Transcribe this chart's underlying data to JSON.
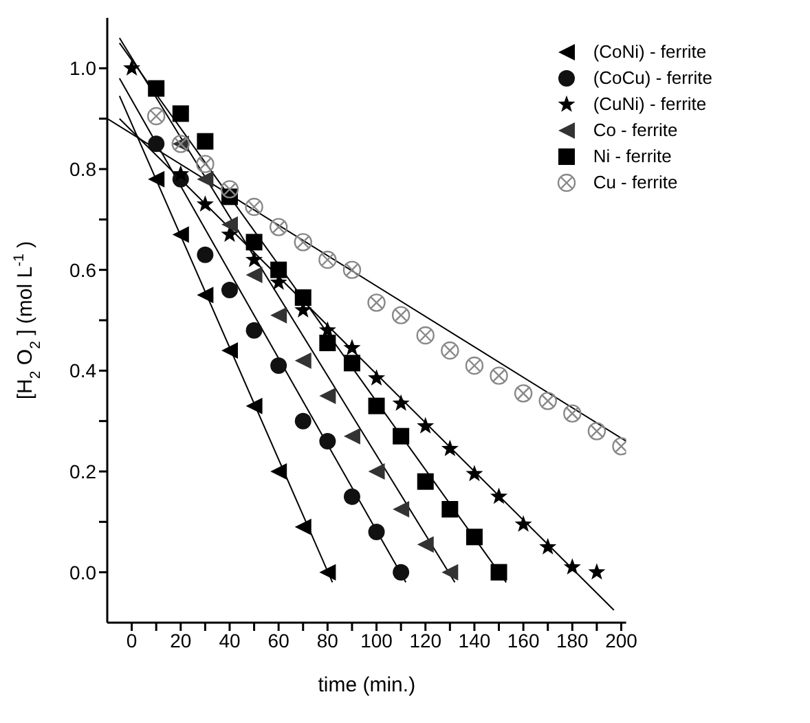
{
  "chart_data": {
    "type": "scatter",
    "xlabel": "time (min.)",
    "ylabel": "[H$_{2}$O$_{2}$] (mol L$^{-1}$)",
    "xlim": [
      -10,
      202
    ],
    "ylim": [
      -0.1,
      1.1
    ],
    "xticks": [
      0,
      {
        "value": 10,
        "label": null
      },
      20,
      {
        "value": 30,
        "label": null
      },
      40,
      {
        "value": 50,
        "label": null
      },
      60,
      {
        "value": 70,
        "label": null
      },
      80,
      {
        "value": 90,
        "label": null
      },
      100,
      {
        "value": 110,
        "label": null
      },
      120,
      {
        "value": 130,
        "label": null
      },
      140,
      {
        "value": 150,
        "label": null
      },
      160,
      {
        "value": 170,
        "label": null
      },
      180,
      {
        "value": 190,
        "label": null
      },
      200
    ],
    "yticks": [
      {
        "value": 0,
        "label": "0.0"
      },
      {
        "value": 0.1,
        "label": null
      },
      {
        "value": 0.2,
        "label": "0.2"
      },
      {
        "value": 0.3,
        "label": null
      },
      {
        "value": 0.4,
        "label": "0.4"
      },
      {
        "value": 0.5,
        "label": null
      },
      {
        "value": 0.6,
        "label": "0.6"
      },
      {
        "value": 0.7,
        "label": null
      },
      {
        "value": 0.8,
        "label": "0.8"
      },
      {
        "value": 0.9,
        "label": null
      },
      {
        "value": 1.0,
        "label": "1.0"
      }
    ],
    "grid": false,
    "legend": "top right",
    "series": [
      {
        "name": "(CoNi) - ferrite",
        "color": "#000000",
        "marker": "triangle",
        "x": [
          10,
          20,
          30,
          40,
          50,
          60,
          70,
          80
        ],
        "values": [
          0.78,
          0.67,
          0.55,
          0.44,
          0.33,
          0.2,
          0.09,
          0.0
        ]
      },
      {
        "name": "(CoCu) - ferrite",
        "color": "#111111",
        "marker": "circle",
        "x": [
          10,
          20,
          30,
          40,
          50,
          60,
          70,
          80,
          90,
          100,
          110
        ],
        "values": [
          0.85,
          0.78,
          0.63,
          0.56,
          0.48,
          0.41,
          0.3,
          0.26,
          0.15,
          0.08,
          0.0
        ]
      },
      {
        "name": "(CuNi) - ferrite",
        "color": "#000000",
        "marker": "star",
        "x": [
          0,
          20,
          30,
          40,
          50,
          60,
          70,
          80,
          90,
          100,
          110,
          120,
          130,
          140,
          150,
          160,
          170,
          180,
          190
        ],
        "values": [
          1.0,
          0.79,
          0.73,
          0.67,
          0.62,
          0.575,
          0.52,
          0.48,
          0.445,
          0.385,
          0.335,
          0.29,
          0.245,
          0.195,
          0.15,
          0.095,
          0.05,
          0.01,
          0.0
        ]
      },
      {
        "name": "Co - ferrite",
        "color": "#333333",
        "marker": "triangle",
        "x": [
          20,
          30,
          40,
          50,
          60,
          70,
          80,
          90,
          100,
          110,
          120,
          130
        ],
        "values": [
          0.85,
          0.78,
          0.69,
          0.59,
          0.51,
          0.42,
          0.35,
          0.27,
          0.2,
          0.125,
          0.055,
          0.0
        ]
      },
      {
        "name": "Ni - ferrite",
        "color": "#000000",
        "marker": "square",
        "x": [
          10,
          20,
          30,
          40,
          50,
          60,
          70,
          80,
          90,
          100,
          110,
          120,
          130,
          140,
          150
        ],
        "values": [
          0.96,
          0.91,
          0.855,
          0.745,
          0.655,
          0.6,
          0.545,
          0.455,
          0.415,
          0.33,
          0.27,
          0.18,
          0.125,
          0.07,
          0.0
        ]
      },
      {
        "name": "Cu - ferrite",
        "color": "#888888",
        "marker": "circle",
        "x": [
          10,
          20,
          30,
          40,
          50,
          60,
          70,
          80,
          90,
          100,
          110,
          120,
          130,
          140,
          150,
          160,
          170,
          180,
          190,
          200
        ],
        "values": [
          0.905,
          0.85,
          0.81,
          0.76,
          0.725,
          0.685,
          0.655,
          0.62,
          0.6,
          0.535,
          0.51,
          0.47,
          0.44,
          0.41,
          0.39,
          0.355,
          0.34,
          0.315,
          0.28,
          0.25
        ]
      },
      {
        "type": "line",
        "color": "#000000",
        "marker": "none",
        "x": [
          -5,
          82
        ],
        "values": [
          0.945,
          -0.02
        ]
      },
      {
        "type": "line",
        "color": "#000000",
        "marker": "none",
        "x": [
          -5,
          112
        ],
        "values": [
          0.98,
          -0.02
        ]
      },
      {
        "type": "line",
        "color": "#000000",
        "marker": "none",
        "x": [
          -5,
          197
        ],
        "values": [
          0.9,
          -0.075
        ]
      },
      {
        "type": "line",
        "color": "#000000",
        "marker": "none",
        "x": [
          -5,
          132
        ],
        "values": [
          1.06,
          -0.02
        ]
      },
      {
        "type": "line",
        "color": "#000000",
        "marker": "none",
        "x": [
          -5,
          153
        ],
        "values": [
          1.05,
          -0.02
        ]
      },
      {
        "type": "line",
        "color": "#000000",
        "marker": "none",
        "x": [
          -10,
          202
        ],
        "values": [
          0.9,
          0.26
        ]
      }
    ]
  }
}
